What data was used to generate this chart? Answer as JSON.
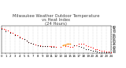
{
  "title": "Milwaukee Weather Outdoor Temperature\nvs Heat Index\n(24 Hours)",
  "title_color": "#404040",
  "title_fontsize": 3.8,
  "bg_color": "#ffffff",
  "plot_bg_color": "#ffffff",
  "grid_color": "#b0b0b0",
  "xlim": [
    0,
    24
  ],
  "ylim": [
    28,
    82
  ],
  "xticks": [
    0,
    1,
    2,
    3,
    4,
    5,
    6,
    7,
    8,
    9,
    10,
    11,
    12,
    13,
    14,
    15,
    16,
    17,
    18,
    19,
    20,
    21,
    22,
    23,
    24
  ],
  "yticks": [
    30,
    35,
    40,
    45,
    50,
    55,
    60,
    65,
    70,
    75,
    80
  ],
  "tick_fontsize": 2.8,
  "temp_x": [
    0,
    0.5,
    1,
    1.5,
    2,
    2.5,
    3,
    3.5,
    4,
    4.5,
    5,
    5.5,
    6,
    6.5,
    7,
    7.5,
    8,
    8.5,
    9,
    9.5,
    10,
    10.5,
    11,
    11.5,
    12,
    13,
    14,
    14.5,
    15,
    15.5,
    16,
    16.5,
    17,
    17.5,
    18,
    18.5,
    19,
    19.5,
    20,
    20.5,
    21,
    21.5,
    22,
    22.5,
    23,
    23.5,
    24
  ],
  "temp_y": [
    78,
    76,
    75,
    73,
    70,
    68,
    65,
    63,
    61,
    58,
    55,
    53,
    50,
    48,
    46,
    45,
    44,
    43,
    42,
    41,
    41,
    41,
    41,
    41,
    40,
    40,
    41,
    41,
    40,
    40,
    43,
    44,
    46,
    47,
    46,
    44,
    42,
    40,
    38,
    36,
    35,
    34,
    33,
    32,
    31,
    31,
    30
  ],
  "heat_x": [
    0,
    1,
    2,
    3,
    4,
    5,
    5.5,
    6,
    6.5,
    7,
    8,
    8.5,
    9,
    9.5,
    10,
    11,
    11.5,
    13.5,
    14,
    14.5,
    15,
    16,
    17,
    17.5,
    18,
    18.5,
    19,
    19.5,
    20,
    20.5,
    21,
    21.5,
    22,
    22.5,
    23,
    23.5
  ],
  "heat_y": [
    76,
    72,
    68,
    63,
    59,
    55,
    53,
    50,
    48,
    46,
    43,
    42,
    41,
    41,
    41,
    40,
    40,
    43,
    44,
    46,
    46,
    44,
    42,
    40,
    38,
    36,
    35,
    34,
    33,
    32,
    31,
    30,
    30,
    30,
    30,
    29
  ],
  "temp_color": "#ff0000",
  "heat_color": "#000000",
  "orange_x": [
    13.5,
    14,
    14.5,
    15
  ],
  "orange_y": [
    43,
    44,
    46,
    46
  ],
  "orange_color": "#ff8800"
}
